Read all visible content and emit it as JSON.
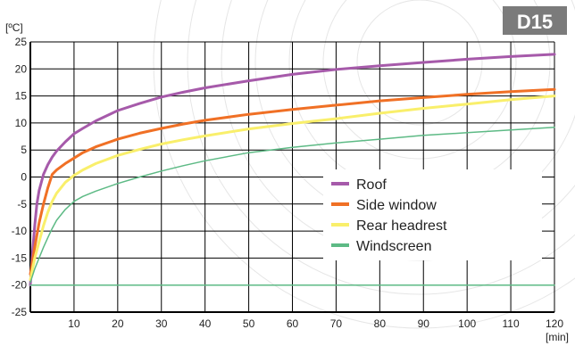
{
  "badge": {
    "label": "D15",
    "background": "#7b7b7b"
  },
  "colors": {
    "grid": "#000000",
    "axis": "#000000",
    "watermark": "#e6e6e6"
  },
  "chart_data": {
    "type": "line",
    "ylabel": "[ºC]",
    "xlabel": "[min]",
    "xlim": [
      0,
      120
    ],
    "ylim": [
      -25,
      25
    ],
    "x_ticks": [
      10,
      20,
      30,
      40,
      50,
      60,
      70,
      80,
      90,
      100,
      110,
      120
    ],
    "y_ticks": [
      25,
      20,
      15,
      10,
      5,
      0,
      -5,
      -10,
      -15,
      -20,
      -25
    ],
    "grid": true,
    "legend_position": "center-right",
    "series": [
      {
        "name": "Roof",
        "color": "#a65aaa",
        "width": 3,
        "points": [
          [
            0,
            -20
          ],
          [
            0.5,
            -14
          ],
          [
            1,
            -9
          ],
          [
            1.5,
            -5
          ],
          [
            2,
            -2.5
          ],
          [
            3,
            0.5
          ],
          [
            4,
            2.3
          ],
          [
            5,
            3.7
          ],
          [
            6,
            4.8
          ],
          [
            8,
            6.5
          ],
          [
            10,
            8
          ],
          [
            12,
            9
          ],
          [
            15,
            10.4
          ],
          [
            20,
            12.3
          ],
          [
            25,
            13.6
          ],
          [
            30,
            14.8
          ],
          [
            35,
            15.7
          ],
          [
            40,
            16.5
          ],
          [
            50,
            17.8
          ],
          [
            60,
            19
          ],
          [
            70,
            19.9
          ],
          [
            80,
            20.6
          ],
          [
            90,
            21.2
          ],
          [
            100,
            21.8
          ],
          [
            110,
            22.3
          ],
          [
            120,
            22.7
          ]
        ]
      },
      {
        "name": "Side window",
        "color": "#f07025",
        "width": 3,
        "points": [
          [
            0,
            -18
          ],
          [
            1,
            -13
          ],
          [
            2,
            -8.5
          ],
          [
            3,
            -5
          ],
          [
            4,
            -2
          ],
          [
            5,
            0.5
          ],
          [
            6,
            1.3
          ],
          [
            8,
            2.5
          ],
          [
            10,
            3.5
          ],
          [
            12,
            4.5
          ],
          [
            15,
            5.6
          ],
          [
            20,
            7
          ],
          [
            25,
            8.1
          ],
          [
            30,
            9
          ],
          [
            35,
            9.8
          ],
          [
            40,
            10.5
          ],
          [
            50,
            11.6
          ],
          [
            60,
            12.5
          ],
          [
            70,
            13.3
          ],
          [
            80,
            14.1
          ],
          [
            90,
            14.7
          ],
          [
            100,
            15.3
          ],
          [
            110,
            15.8
          ],
          [
            120,
            16.2
          ]
        ]
      },
      {
        "name": "Rear headrest",
        "color": "#f9ef6b",
        "width": 3,
        "points": [
          [
            0,
            -19
          ],
          [
            1,
            -15
          ],
          [
            2,
            -12
          ],
          [
            3,
            -9
          ],
          [
            4,
            -6.5
          ],
          [
            5,
            -4.5
          ],
          [
            6,
            -3
          ],
          [
            8,
            -1
          ],
          [
            10,
            0.3
          ],
          [
            12,
            1.3
          ],
          [
            15,
            2.5
          ],
          [
            20,
            4
          ],
          [
            25,
            5.1
          ],
          [
            30,
            6.1
          ],
          [
            35,
            6.9
          ],
          [
            40,
            7.6
          ],
          [
            50,
            8.9
          ],
          [
            60,
            9.9
          ],
          [
            70,
            10.8
          ],
          [
            80,
            11.8
          ],
          [
            90,
            12.7
          ],
          [
            100,
            13.5
          ],
          [
            110,
            14.3
          ],
          [
            120,
            15
          ]
        ]
      },
      {
        "name": "Windscreen",
        "color": "#5dba85",
        "width": 1.5,
        "points": [
          [
            0,
            -19.5
          ],
          [
            1,
            -17
          ],
          [
            2,
            -15
          ],
          [
            3,
            -13
          ],
          [
            4,
            -11.2
          ],
          [
            5,
            -9.5
          ],
          [
            6,
            -8
          ],
          [
            8,
            -6
          ],
          [
            10,
            -4.5
          ],
          [
            12,
            -3.6
          ],
          [
            15,
            -2.6
          ],
          [
            20,
            -1.2
          ],
          [
            25,
            0
          ],
          [
            30,
            1.1
          ],
          [
            35,
            2.1
          ],
          [
            40,
            3
          ],
          [
            50,
            4.5
          ],
          [
            60,
            5.5
          ],
          [
            70,
            6.3
          ],
          [
            80,
            7
          ],
          [
            90,
            7.7
          ],
          [
            100,
            8.2
          ],
          [
            110,
            8.7
          ],
          [
            120,
            9.2
          ]
        ]
      },
      {
        "name": "",
        "color": "#5dba85",
        "width": 1.5,
        "points": [
          [
            0,
            -20
          ],
          [
            120,
            -20
          ]
        ]
      }
    ]
  }
}
